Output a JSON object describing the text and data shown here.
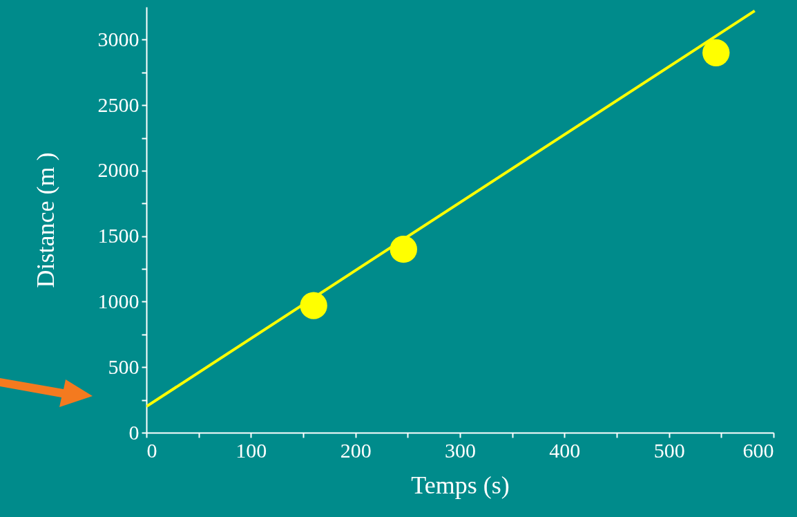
{
  "chart_data": {
    "type": "scatter",
    "xlabel": "Temps (s)",
    "ylabel": "Distance (m )",
    "xlim": [
      0,
      600
    ],
    "ylim": [
      0,
      3250
    ],
    "xticks": [
      0,
      {
        "value": 50,
        "label": null
      },
      100,
      {
        "value": 150,
        "label": null
      },
      200,
      {
        "value": 250,
        "label": null
      },
      300,
      {
        "value": 350,
        "label": null
      },
      400,
      {
        "value": 450,
        "label": null
      },
      500,
      {
        "value": 550,
        "label": null
      },
      600
    ],
    "yticks": [
      0,
      {
        "value": 250,
        "label": null
      },
      500,
      {
        "value": 750,
        "label": null
      },
      1000,
      {
        "value": 1250,
        "label": null
      },
      1500,
      {
        "value": 1750,
        "label": null
      },
      2000,
      {
        "value": 2250,
        "label": null
      },
      2500,
      {
        "value": 2750,
        "label": null
      },
      3000
    ],
    "series": [
      {
        "type": "line",
        "color": "#ffff00",
        "x": [
          0,
          582
        ],
        "values": [
          200,
          3220
        ],
        "marker": "none"
      },
      {
        "type": "scatter",
        "color": "#ffff00",
        "x": [
          160,
          246,
          545
        ],
        "values": [
          970,
          1400,
          2900
        ],
        "marker": "circle"
      }
    ]
  }
}
